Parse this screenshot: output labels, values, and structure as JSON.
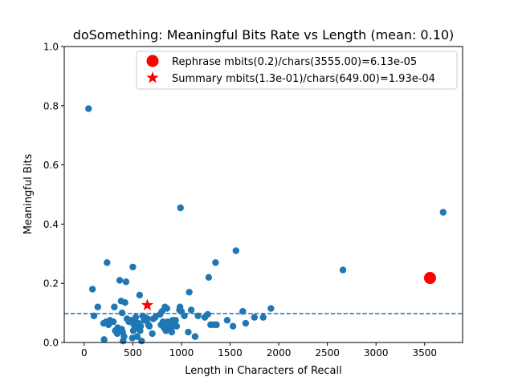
{
  "chart_data": {
    "type": "scatter",
    "title": "doSomething: Meaningful Bits Rate vs Length (mean: 0.10)",
    "xlabel": "Length in Characters of Recall",
    "ylabel": "Meaningful Bits",
    "xlim": [
      -205,
      3890
    ],
    "ylim": [
      0,
      1.0
    ],
    "xticks": [
      0,
      500,
      1000,
      1500,
      2000,
      2500,
      3000,
      3500
    ],
    "xtick_labels": [
      "0",
      "500",
      "1000",
      "1500",
      "2000",
      "2500",
      "3000",
      "3500"
    ],
    "yticks": [
      0.0,
      0.2,
      0.4,
      0.6,
      0.8,
      1.0
    ],
    "ytick_labels": [
      "0.0",
      "0.2",
      "0.4",
      "0.6",
      "0.8",
      "1.0"
    ],
    "grid": false,
    "legend_position": "top-right",
    "mean_line": {
      "y": 0.098,
      "style": "dashed",
      "color": "#1f77b4"
    },
    "colors": {
      "points": "#1f77b4",
      "highlight": "#ff0000",
      "mean_line": "#1f77b4"
    },
    "series": [
      {
        "marker": "circle",
        "color": "#1f77b4",
        "points": [
          [
            45,
            0.79
          ],
          [
            85,
            0.18
          ],
          [
            100,
            0.09
          ],
          [
            140,
            0.12
          ],
          [
            200,
            0.065
          ],
          [
            205,
            0.01
          ],
          [
            225,
            0.07
          ],
          [
            235,
            0.27
          ],
          [
            250,
            0.06
          ],
          [
            265,
            0.075
          ],
          [
            300,
            0.07
          ],
          [
            310,
            0.12
          ],
          [
            320,
            0.04
          ],
          [
            340,
            0.03
          ],
          [
            345,
            0.05
          ],
          [
            365,
            0.21
          ],
          [
            380,
            0.14
          ],
          [
            385,
            0.045
          ],
          [
            390,
            0.1
          ],
          [
            395,
            0.035
          ],
          [
            400,
            0.005
          ],
          [
            410,
            0.02
          ],
          [
            420,
            0.135
          ],
          [
            430,
            0.205
          ],
          [
            440,
            0.08
          ],
          [
            460,
            0.07
          ],
          [
            480,
            0.075
          ],
          [
            495,
            0.015
          ],
          [
            500,
            0.255
          ],
          [
            505,
            0.04
          ],
          [
            510,
            0.06
          ],
          [
            520,
            0.07
          ],
          [
            530,
            0.085
          ],
          [
            540,
            0.05
          ],
          [
            545,
            0.02
          ],
          [
            555,
            0.065
          ],
          [
            570,
            0.16
          ],
          [
            575,
            0.04
          ],
          [
            580,
            0.055
          ],
          [
            590,
            0.005
          ],
          [
            600,
            0.09
          ],
          [
            615,
            0.075
          ],
          [
            625,
            0.085
          ],
          [
            650,
            0.08
          ],
          [
            660,
            0.06
          ],
          [
            670,
            0.055
          ],
          [
            700,
            0.03
          ],
          [
            710,
            0.08
          ],
          [
            730,
            0.085
          ],
          [
            780,
            0.095
          ],
          [
            790,
            0.06
          ],
          [
            800,
            0.105
          ],
          [
            810,
            0.07
          ],
          [
            820,
            0.05
          ],
          [
            830,
            0.12
          ],
          [
            840,
            0.04
          ],
          [
            850,
            0.115
          ],
          [
            860,
            0.07
          ],
          [
            870,
            0.06
          ],
          [
            880,
            0.045
          ],
          [
            900,
            0.035
          ],
          [
            910,
            0.075
          ],
          [
            920,
            0.055
          ],
          [
            940,
            0.075
          ],
          [
            950,
            0.055
          ],
          [
            980,
            0.11
          ],
          [
            985,
            0.12
          ],
          [
            990,
            0.455
          ],
          [
            1000,
            0.105
          ],
          [
            1030,
            0.09
          ],
          [
            1070,
            0.035
          ],
          [
            1080,
            0.17
          ],
          [
            1100,
            0.11
          ],
          [
            1140,
            0.02
          ],
          [
            1170,
            0.09
          ],
          [
            1240,
            0.085
          ],
          [
            1270,
            0.095
          ],
          [
            1280,
            0.22
          ],
          [
            1300,
            0.06
          ],
          [
            1330,
            0.06
          ],
          [
            1350,
            0.27
          ],
          [
            1360,
            0.06
          ],
          [
            1470,
            0.075
          ],
          [
            1530,
            0.055
          ],
          [
            1560,
            0.31
          ],
          [
            1630,
            0.105
          ],
          [
            1660,
            0.065
          ],
          [
            1750,
            0.085
          ],
          [
            1840,
            0.085
          ],
          [
            1920,
            0.115
          ],
          [
            2660,
            0.245
          ],
          [
            3690,
            0.44
          ]
        ]
      },
      {
        "name": "Rephrase mbits(0.2)/chars(3555.00)=6.13e-05",
        "marker": "large-circle",
        "color": "#ff0000",
        "points": [
          [
            3555,
            0.218
          ]
        ]
      },
      {
        "name": "Summary mbits(1.3e-01)/chars(649.00)=1.93e-04",
        "marker": "star",
        "color": "#ff0000",
        "points": [
          [
            649,
            0.126
          ]
        ]
      }
    ]
  }
}
